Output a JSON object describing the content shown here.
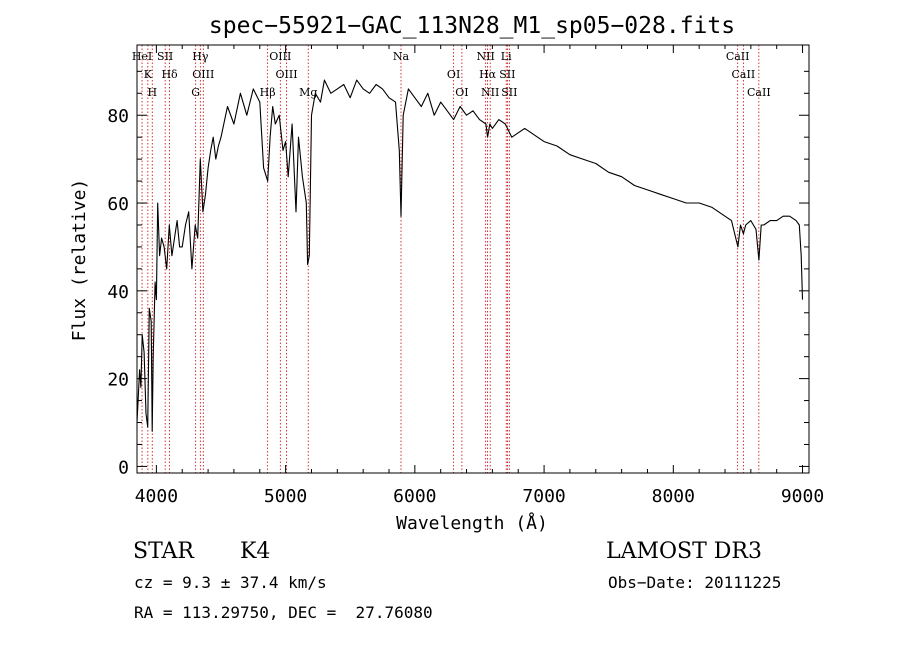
{
  "chart_data": {
    "type": "line",
    "title": "spec−55921−GAC_113N28_M1_sp05−028.fits",
    "xlabel": "Wavelength (Å)",
    "ylabel": "Flux (relative)",
    "xlim": [
      3850,
      9050
    ],
    "ylim": [
      -1.5,
      96
    ],
    "x_ticks": [
      4000,
      5000,
      6000,
      7000,
      8000,
      9000
    ],
    "y_ticks": [
      0,
      20,
      40,
      60,
      80
    ],
    "series": [
      {
        "name": "flux",
        "x": [
          3850,
          3870,
          3880,
          3890,
          3905,
          3920,
          3933,
          3945,
          3960,
          3968,
          3975,
          3990,
          4000,
          4010,
          4025,
          4040,
          4060,
          4080,
          4100,
          4120,
          4140,
          4160,
          4180,
          4200,
          4225,
          4250,
          4275,
          4300,
          4320,
          4340,
          4360,
          4380,
          4400,
          4420,
          4440,
          4460,
          4480,
          4500,
          4550,
          4600,
          4650,
          4700,
          4750,
          4800,
          4830,
          4861,
          4880,
          4900,
          4920,
          4950,
          4980,
          5000,
          5020,
          5050,
          5080,
          5100,
          5130,
          5160,
          5170,
          5183,
          5200,
          5230,
          5270,
          5300,
          5350,
          5400,
          5450,
          5500,
          5550,
          5600,
          5650,
          5700,
          5750,
          5800,
          5850,
          5880,
          5893,
          5910,
          5950,
          6000,
          6050,
          6100,
          6150,
          6200,
          6250,
          6300,
          6350,
          6400,
          6450,
          6500,
          6550,
          6563,
          6580,
          6600,
          6650,
          6700,
          6750,
          6800,
          6850,
          6900,
          6950,
          7000,
          7100,
          7200,
          7300,
          7400,
          7500,
          7600,
          7700,
          7800,
          7900,
          8000,
          8100,
          8200,
          8300,
          8400,
          8450,
          8500,
          8520,
          8542,
          8560,
          8600,
          8640,
          8662,
          8680,
          8700,
          8750,
          8800,
          8850,
          8900,
          8950,
          8975,
          8990,
          9000
        ],
        "values": [
          10,
          22,
          18,
          30,
          26,
          12,
          9,
          36,
          33,
          8,
          25,
          42,
          38,
          60,
          48,
          52,
          50,
          45,
          55,
          48,
          52,
          56,
          50,
          50,
          55,
          58,
          45,
          55,
          52,
          70,
          58,
          62,
          68,
          72,
          75,
          70,
          73,
          75,
          82,
          78,
          85,
          80,
          86,
          83,
          68,
          65,
          75,
          82,
          78,
          80,
          72,
          74,
          66,
          78,
          58,
          75,
          66,
          60,
          46,
          48,
          80,
          85,
          83,
          88,
          85,
          86,
          87,
          84,
          88,
          86,
          85,
          87,
          86,
          84,
          83,
          72,
          57,
          80,
          86,
          84,
          82,
          85,
          80,
          83,
          81,
          79,
          82,
          80,
          81,
          79,
          78,
          75,
          78,
          77,
          79,
          78,
          75,
          76,
          77,
          76,
          75,
          74,
          73,
          71,
          70,
          69,
          67,
          66,
          64,
          63,
          62,
          61,
          60,
          60,
          59,
          57,
          56,
          50,
          55,
          53,
          55,
          56,
          54,
          47,
          55,
          55,
          56,
          56,
          57,
          57,
          56,
          55,
          48,
          38
        ]
      }
    ],
    "lines": [
      {
        "x": 3889,
        "label": "HeI"
      },
      {
        "x": 3934,
        "label": "K"
      },
      {
        "x": 3968,
        "label": "H"
      },
      {
        "x": 4068,
        "label": "SII"
      },
      {
        "x": 4102,
        "label": "Hδ"
      },
      {
        "x": 4304,
        "label": "G"
      },
      {
        "x": 4340,
        "label": "Hγ"
      },
      {
        "x": 4363,
        "label": "OIII"
      },
      {
        "x": 4861,
        "label": "Hβ"
      },
      {
        "x": 4959,
        "label": "OIII"
      },
      {
        "x": 5007,
        "label": "OIII"
      },
      {
        "x": 5175,
        "label": "Mg"
      },
      {
        "x": 5893,
        "label": "Na"
      },
      {
        "x": 6300,
        "label": "OI"
      },
      {
        "x": 6364,
        "label": "OI"
      },
      {
        "x": 6548,
        "label": "NII"
      },
      {
        "x": 6563,
        "label": "Hα"
      },
      {
        "x": 6583,
        "label": "NII"
      },
      {
        "x": 6707,
        "label": "Li"
      },
      {
        "x": 6716,
        "label": "SII"
      },
      {
        "x": 6731,
        "label": "SII"
      },
      {
        "x": 8498,
        "label": "CaII"
      },
      {
        "x": 8542,
        "label": "CaII"
      },
      {
        "x": 8662,
        "label": "CaII"
      }
    ]
  },
  "info": {
    "object_class": "STAR",
    "subclass": "K4",
    "survey": "LAMOST DR3",
    "redshift": "cz = 9.3 ± 37.4 km/s",
    "obs_date": "Obs−Date: 20111225",
    "coords": "RA = 113.29750, DEC =  27.76080"
  },
  "colors": {
    "spectrum": "#000000",
    "lines": "#d00000",
    "axes": "#000000"
  }
}
